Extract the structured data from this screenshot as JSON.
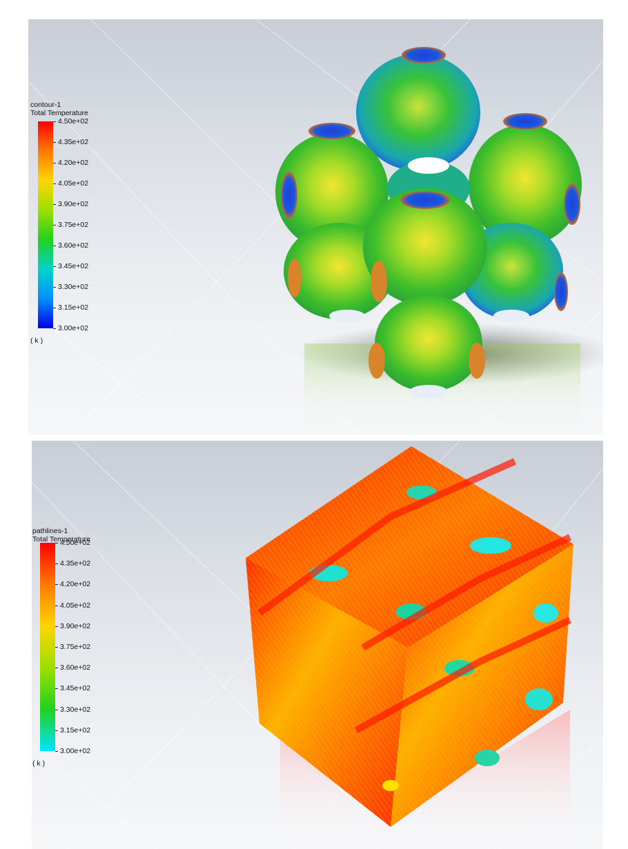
{
  "panels": [
    {
      "legend": {
        "name": "contour-1",
        "variable": "Total Temperature",
        "unit": "( k )",
        "ticks": [
          "4.50e+02",
          "4.35e+02",
          "4.20e+02",
          "4.05e+02",
          "3.90e+02",
          "3.75e+02",
          "3.60e+02",
          "3.45e+02",
          "3.30e+02",
          "3.15e+02",
          "3.00e+02"
        ],
        "colors": [
          "#ff0000",
          "#ff7a00",
          "#ffd400",
          "#9be000",
          "#22d11f",
          "#00d3c8",
          "#0090ff",
          "#0000e6"
        ]
      }
    },
    {
      "legend": {
        "name": "pathlines-1",
        "variable": "Total Temperature",
        "unit": "( k )",
        "ticks": [
          "4.50e+02",
          "4.35e+02",
          "4.20e+02",
          "4.05e+02",
          "3.90e+02",
          "3.75e+02",
          "3.60e+02",
          "3.45e+02",
          "3.30e+02",
          "3.15e+02",
          "3.00e+02"
        ],
        "colors": [
          "#ff0000",
          "#ff7a00",
          "#ffd400",
          "#9be000",
          "#22d11f",
          "#00e5ff"
        ]
      }
    }
  ]
}
